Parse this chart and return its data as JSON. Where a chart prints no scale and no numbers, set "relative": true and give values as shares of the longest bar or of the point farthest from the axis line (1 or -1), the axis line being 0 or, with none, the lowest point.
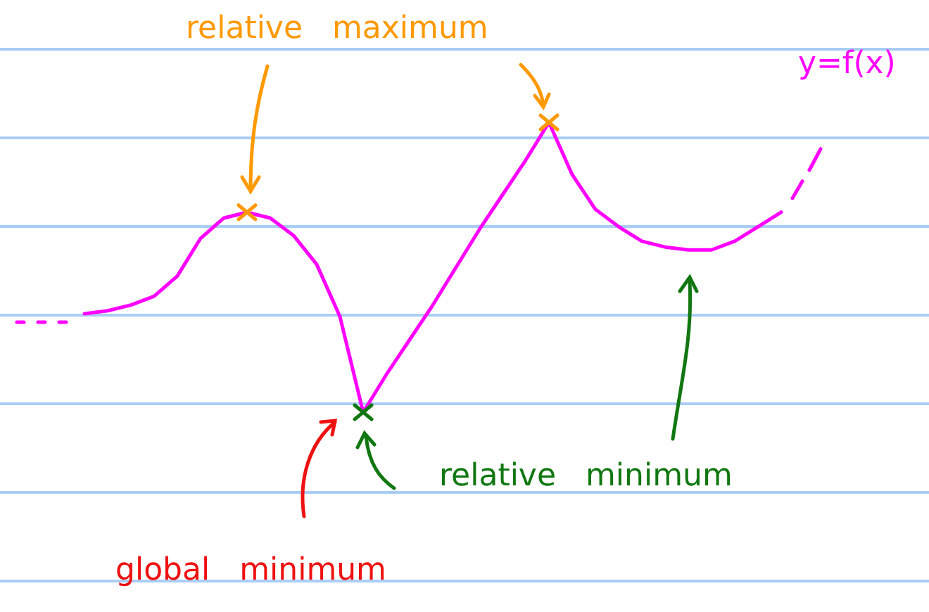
{
  "chart_data": {
    "type": "line",
    "relative": true,
    "legend": false,
    "marker": "none",
    "tick_labels": false,
    "categories": [
      null,
      null,
      null,
      null,
      null,
      null,
      null,
      null,
      null,
      null,
      null,
      null,
      null,
      null,
      null,
      null,
      null,
      null,
      null,
      null,
      null,
      null,
      null,
      null,
      null,
      null,
      null,
      null,
      null,
      null,
      null
    ],
    "series": [
      {
        "name": "y=f(x)",
        "color": "#ff00ff",
        "line_style": "solid",
        "values": [
          0.34,
          0.35,
          0.37,
          0.4,
          0.47,
          0.6,
          0.67,
          0.69,
          0.67,
          0.61,
          0.51,
          0.33,
          0,
          0.13,
          0.25,
          0.37,
          0.5,
          0.63,
          0.75,
          0.87,
          1,
          0.82,
          0.7,
          0.64,
          0.59,
          0.57,
          0.56,
          0.56,
          0.59,
          0.64,
          0.69
        ]
      }
    ],
    "annotations": [
      "relative maximum",
      "relative minimum",
      "global minimum"
    ]
  }
}
